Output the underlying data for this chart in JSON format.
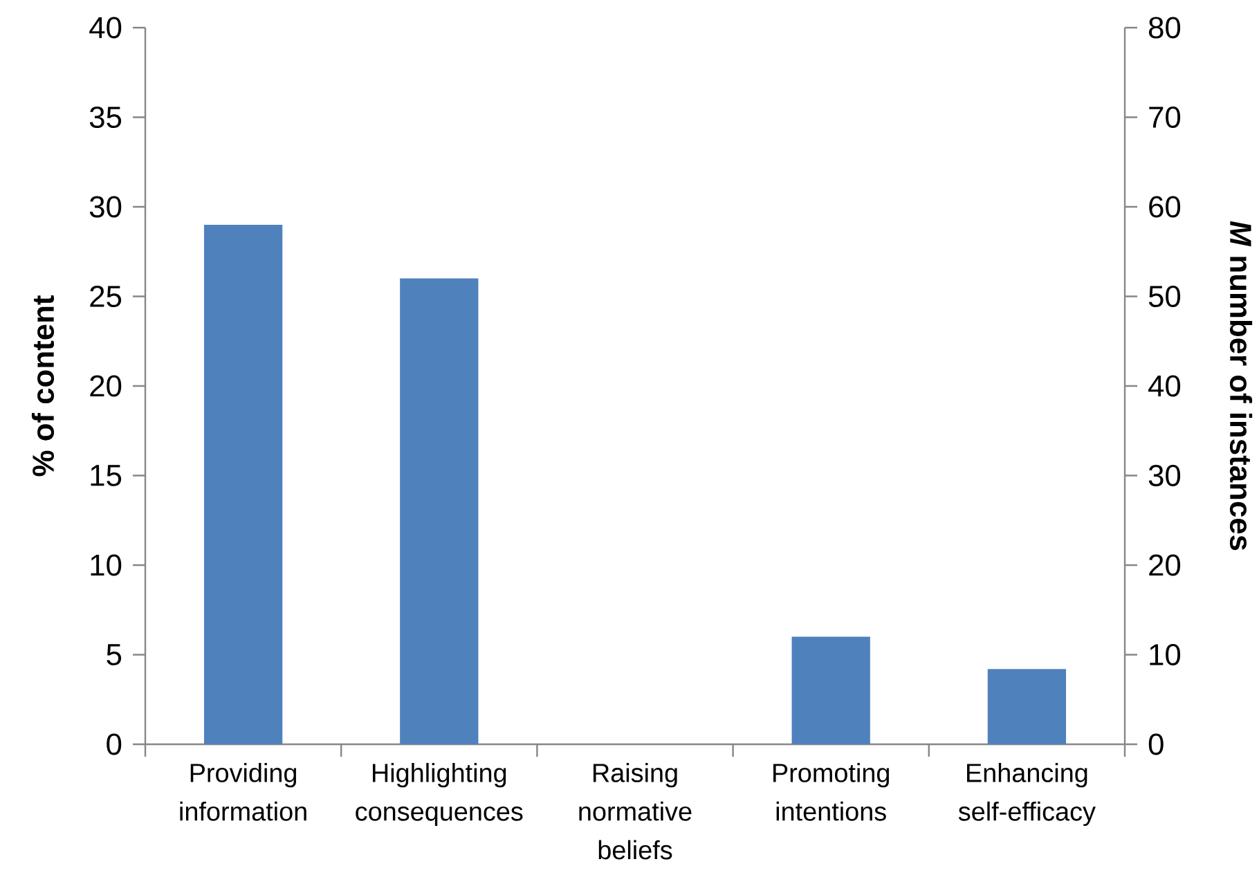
{
  "chart_data": {
    "type": "bar",
    "categories": [
      "Providing information",
      "Highlighting consequences",
      "Raising normative beliefs",
      "Promoting intentions",
      "Enhancing self-efficacy"
    ],
    "values": [
      29,
      26,
      0,
      6,
      4.2
    ],
    "color": "#4f81bd",
    "ylabel": "% of content",
    "y2label": "*M* number of instances",
    "ylim": [
      0,
      40
    ],
    "yticks": [
      0,
      5,
      10,
      15,
      20,
      25,
      30,
      35,
      40
    ],
    "y2lim": [
      0,
      80
    ],
    "y2ticks": [
      0,
      10,
      20,
      30,
      40,
      50,
      60,
      70,
      80
    ]
  }
}
